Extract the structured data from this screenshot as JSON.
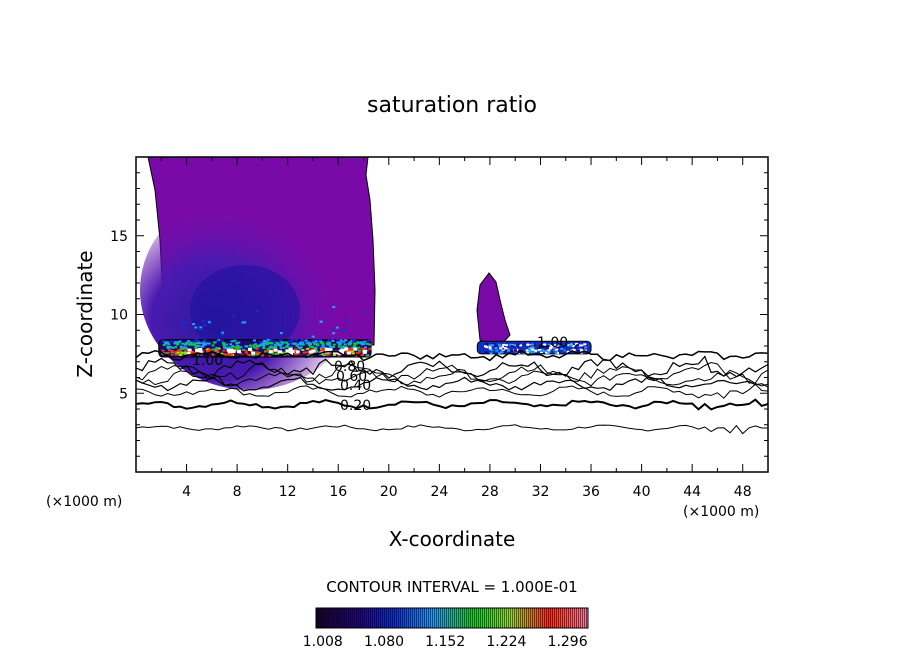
{
  "chart_data": {
    "type": "contour",
    "title": "saturation ratio",
    "xlabel": "X-coordinate",
    "ylabel": "Z-coordinate",
    "x_unit_left": "(×1000 m)",
    "x_unit_right": "(×1000 m)",
    "xlim": [
      0,
      50
    ],
    "ylim": [
      0,
      20
    ],
    "x_ticks": [
      "4",
      "8",
      "12",
      "16",
      "20",
      "24",
      "28",
      "32",
      "36",
      "40",
      "44",
      "48"
    ],
    "y_ticks": [
      "5",
      "10",
      "15"
    ],
    "contour_interval_text": "CONTOUR INTERVAL = 1.000E-01",
    "colorbar_labels": [
      "1.008",
      "1.080",
      "1.152",
      "1.224",
      "1.296"
    ],
    "colorbar_range": [
      1.0,
      1.32
    ],
    "contour_line_labels": [
      "1.00",
      "1.00",
      "0.80",
      "0.60",
      "0.40",
      "0.20"
    ],
    "contour_levels": [
      0.2,
      0.4,
      0.6,
      0.8,
      1.0
    ],
    "plume_color": "#7a0aa8",
    "palette": [
      "#1a0030",
      "#28007a",
      "#1030d0",
      "#20a0ff",
      "#00d040",
      "#a0e000",
      "#ff3010",
      "#ff80a0"
    ]
  }
}
